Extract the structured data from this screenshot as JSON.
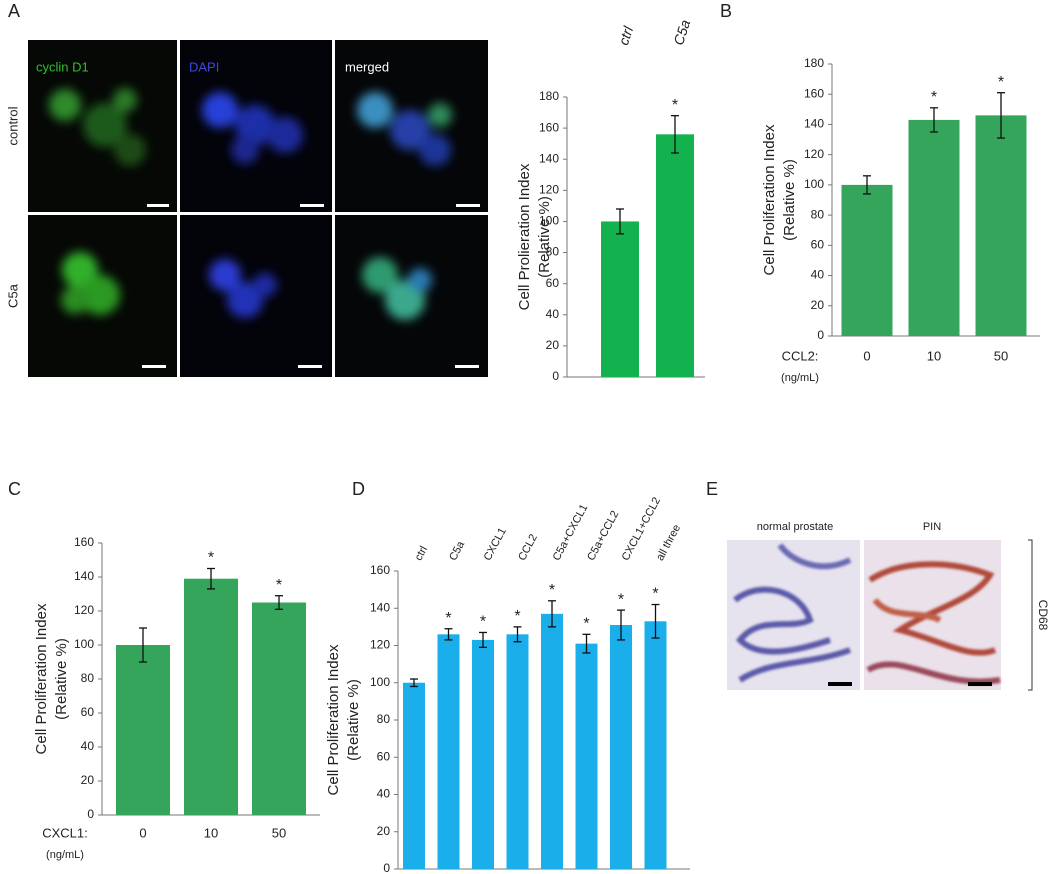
{
  "panel_labels": [
    "A",
    "B",
    "C",
    "D",
    "E"
  ],
  "panel_a_images": {
    "columns": [
      "cyclin D1",
      "DAPI",
      "merged"
    ],
    "rows": [
      "control",
      "C5a"
    ]
  },
  "panel_e_images": {
    "columns": [
      "normal prostate",
      "PIN"
    ],
    "side_label": "CD68"
  },
  "chart_data": [
    {
      "type": "bar",
      "ylabel": [
        "Cell Prolieration Index",
        "(Relative %)"
      ],
      "categories": [
        "ctrl",
        "C5a"
      ],
      "values": [
        100,
        156
      ],
      "errors": [
        8,
        12
      ],
      "value_annotations": [
        null,
        "*"
      ],
      "color": "#13b24f",
      "ylim": [
        0,
        180
      ],
      "yticks": [
        0,
        20,
        40,
        60,
        80,
        100,
        120,
        140,
        160,
        180
      ],
      "grid": false
    },
    {
      "type": "bar",
      "ylabel": [
        "Cell Proliferation Index",
        "(Relative %)"
      ],
      "xlabel": [
        "CCL2:",
        "(ng/mL)"
      ],
      "categories": [
        "0",
        "10",
        "50"
      ],
      "values": [
        100,
        143,
        146
      ],
      "errors": [
        6,
        8,
        15
      ],
      "value_annotations": [
        null,
        "*",
        "*"
      ],
      "color": "#34a55b",
      "ylim": [
        0,
        180
      ],
      "yticks": [
        0,
        20,
        40,
        60,
        80,
        100,
        120,
        140,
        160,
        180
      ],
      "grid": false
    },
    {
      "type": "bar",
      "ylabel": [
        "Cell Proliferation Index",
        "(Relative %)"
      ],
      "xlabel": [
        "CXCL1:",
        "(ng/mL)"
      ],
      "categories": [
        "0",
        "10",
        "50"
      ],
      "values": [
        100,
        139,
        125
      ],
      "errors": [
        10,
        6,
        4
      ],
      "value_annotations": [
        null,
        "*",
        "*"
      ],
      "color": "#34a55b",
      "ylim": [
        0,
        160
      ],
      "yticks": [
        0,
        20,
        40,
        60,
        80,
        100,
        120,
        140,
        160
      ],
      "grid": false
    },
    {
      "type": "bar",
      "ylabel": [
        "Cell Proliferation Index",
        "(Relative %)"
      ],
      "categories": [
        "ctrl",
        "C5a",
        "CXCL1",
        "CCL2",
        "C5a+CXCL1",
        "C5a+CCL2",
        "CXCL1+CCL2",
        "all three"
      ],
      "values": [
        100,
        126,
        123,
        126,
        137,
        121,
        131,
        133
      ],
      "errors": [
        2,
        3,
        4,
        4,
        7,
        5,
        8,
        9
      ],
      "value_annotations": [
        null,
        "*",
        "*",
        "*",
        "*",
        "*",
        "*",
        "*"
      ],
      "color": "#1aaeea",
      "ylim": [
        0,
        160
      ],
      "yticks": [
        0,
        20,
        40,
        60,
        80,
        100,
        120,
        140,
        160
      ],
      "grid": false
    }
  ]
}
